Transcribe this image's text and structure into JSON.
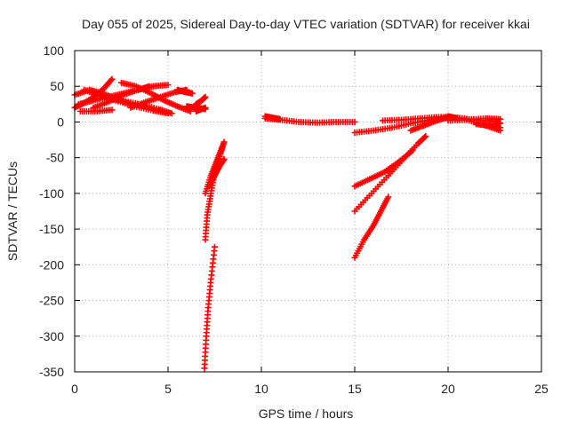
{
  "chart_data": {
    "type": "scatter",
    "title": "Day 055 of 2025, Sidereal Day-to-day VTEC variation (SDTVAR) for receiver kkai",
    "xlabel": "GPS time / hours",
    "ylabel": "SDTVAR / TECUs",
    "xlim": [
      0,
      25
    ],
    "ylim": [
      -350,
      100
    ],
    "x_ticks": [
      0,
      5,
      10,
      15,
      20,
      25
    ],
    "y_ticks": [
      -350,
      -300,
      -250,
      -200,
      -150,
      -100,
      -50,
      0,
      50,
      100
    ],
    "x_tick_labels": [
      "0",
      "5",
      "10",
      "15",
      "20",
      "25"
    ],
    "y_tick_labels": [
      "-350",
      "-300",
      "-250",
      "-200",
      "-150",
      "-100",
      "-50",
      "0",
      "50",
      "100"
    ],
    "grid": true,
    "marker": "+",
    "color": "#ff0000",
    "series": [
      {
        "points": [
          [
            0.0,
            20
          ],
          [
            0.6,
            28
          ],
          [
            1.2,
            38
          ],
          [
            1.6,
            48
          ],
          [
            2.0,
            60
          ]
        ]
      },
      {
        "points": [
          [
            0.0,
            38
          ],
          [
            0.8,
            45
          ],
          [
            1.5,
            40
          ],
          [
            2.3,
            32
          ],
          [
            3.0,
            25
          ]
        ]
      },
      {
        "points": [
          [
            0.2,
            25
          ],
          [
            1.0,
            30
          ],
          [
            1.8,
            35
          ],
          [
            2.6,
            40
          ],
          [
            3.4,
            45
          ],
          [
            4.2,
            50
          ],
          [
            5.0,
            52
          ]
        ]
      },
      {
        "points": [
          [
            0.3,
            15
          ],
          [
            1.2,
            15
          ],
          [
            2.0,
            17
          ]
        ]
      },
      {
        "points": [
          [
            0.5,
            45
          ],
          [
            1.3,
            38
          ],
          [
            2.2,
            30
          ],
          [
            3.2,
            22
          ],
          [
            4.2,
            16
          ],
          [
            5.0,
            12
          ]
        ]
      },
      {
        "points": [
          [
            1.0,
            20
          ],
          [
            1.8,
            28
          ],
          [
            2.6,
            38
          ],
          [
            3.4,
            45
          ],
          [
            4.0,
            50
          ]
        ]
      },
      {
        "points": [
          [
            2.5,
            55
          ],
          [
            3.3,
            50
          ],
          [
            4.1,
            40
          ],
          [
            4.8,
            30
          ],
          [
            5.5,
            22
          ],
          [
            6.2,
            15
          ]
        ]
      },
      {
        "points": [
          [
            1.5,
            35
          ],
          [
            2.5,
            30
          ],
          [
            3.5,
            25
          ],
          [
            4.5,
            18
          ],
          [
            5.2,
            12
          ]
        ]
      },
      {
        "points": [
          [
            3.0,
            20
          ],
          [
            3.8,
            28
          ],
          [
            4.6,
            35
          ],
          [
            5.4,
            42
          ],
          [
            6.0,
            45
          ]
        ]
      },
      {
        "points": [
          [
            5.5,
            45
          ],
          [
            5.9,
            42
          ],
          [
            6.3,
            40
          ]
        ]
      },
      {
        "points": [
          [
            6.5,
            25
          ],
          [
            6.8,
            30
          ],
          [
            7.0,
            35
          ]
        ]
      },
      {
        "points": [
          [
            6.5,
            15
          ],
          [
            6.8,
            18
          ],
          [
            7.0,
            20
          ]
        ]
      },
      {
        "points": [
          [
            6.0,
            22
          ],
          [
            6.5,
            20
          ],
          [
            7.0,
            18
          ]
        ]
      },
      {
        "points": [
          [
            7.0,
            -165
          ],
          [
            7.1,
            -130
          ],
          [
            7.3,
            -100
          ],
          [
            7.5,
            -70
          ],
          [
            7.8,
            -45
          ],
          [
            8.0,
            -28
          ]
        ]
      },
      {
        "points": [
          [
            7.0,
            -100
          ],
          [
            7.3,
            -75
          ],
          [
            7.6,
            -55
          ],
          [
            7.9,
            -35
          ]
        ]
      },
      {
        "points": [
          [
            7.2,
            -90
          ],
          [
            7.5,
            -75
          ],
          [
            7.8,
            -60
          ],
          [
            8.0,
            -52
          ]
        ]
      },
      {
        "points": [
          [
            6.95,
            -345
          ],
          [
            7.05,
            -300
          ],
          [
            7.15,
            -260
          ],
          [
            7.3,
            -220
          ],
          [
            7.5,
            -175
          ]
        ]
      },
      {
        "points": [
          [
            10.2,
            5
          ],
          [
            11.0,
            3
          ],
          [
            12.0,
            0
          ],
          [
            13.0,
            -1
          ],
          [
            14.0,
            0
          ],
          [
            15.0,
            0
          ]
        ]
      },
      {
        "points": [
          [
            10.2,
            8
          ],
          [
            10.6,
            6
          ],
          [
            11.0,
            4
          ]
        ]
      },
      {
        "points": [
          [
            15.0,
            -15
          ],
          [
            16.0,
            -12
          ],
          [
            17.0,
            -8
          ],
          [
            18.0,
            -2
          ],
          [
            19.0,
            3
          ],
          [
            20.0,
            8
          ],
          [
            20.5,
            5
          ]
        ]
      },
      {
        "points": [
          [
            15.0,
            -90
          ],
          [
            15.8,
            -80
          ],
          [
            16.6,
            -70
          ],
          [
            17.4,
            -55
          ],
          [
            18.1,
            -40
          ]
        ]
      },
      {
        "points": [
          [
            15.0,
            -125
          ],
          [
            15.9,
            -100
          ],
          [
            16.8,
            -75
          ],
          [
            17.6,
            -52
          ],
          [
            18.4,
            -30
          ],
          [
            18.8,
            -20
          ]
        ]
      },
      {
        "points": [
          [
            15.0,
            -190
          ],
          [
            15.5,
            -165
          ],
          [
            16.0,
            -145
          ],
          [
            16.4,
            -125
          ],
          [
            16.8,
            -105
          ]
        ]
      },
      {
        "points": [
          [
            16.5,
            2
          ],
          [
            17.5,
            3
          ],
          [
            18.5,
            5
          ],
          [
            19.5,
            7
          ],
          [
            20.5,
            6
          ],
          [
            21.5,
            3
          ],
          [
            22.5,
            0
          ],
          [
            22.8,
            -2
          ]
        ]
      },
      {
        "points": [
          [
            18.0,
            -12
          ],
          [
            18.7,
            -5
          ],
          [
            19.4,
            2
          ],
          [
            20.0,
            7
          ]
        ]
      },
      {
        "points": [
          [
            20.0,
            2
          ],
          [
            21.0,
            3
          ],
          [
            22.0,
            5
          ],
          [
            22.8,
            4
          ]
        ]
      },
      {
        "points": [
          [
            20.0,
            8
          ],
          [
            21.0,
            3
          ],
          [
            22.0,
            -5
          ],
          [
            22.8,
            -12
          ]
        ]
      },
      {
        "points": [
          [
            21.5,
            -3
          ],
          [
            22.2,
            -5
          ],
          [
            22.8,
            -8
          ]
        ]
      }
    ]
  }
}
